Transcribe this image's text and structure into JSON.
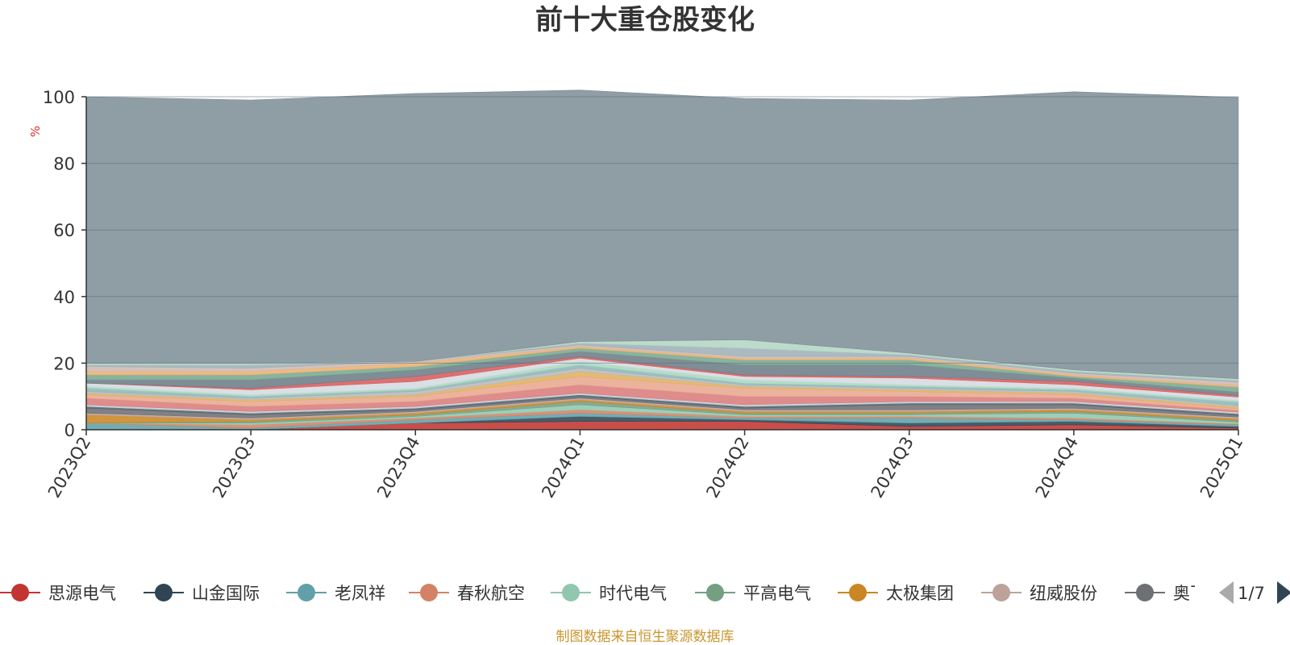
{
  "chart_data": {
    "type": "area",
    "stacked": true,
    "title": "前十大重仓股变化",
    "unit_label": "%",
    "categories": [
      "2023Q2",
      "2023Q3",
      "2023Q4",
      "2024Q1",
      "2024Q2",
      "2024Q3",
      "2024Q4",
      "2025Q1"
    ],
    "ylim": [
      0,
      100
    ],
    "yticks": [
      0,
      20,
      40,
      60,
      80,
      100
    ],
    "grid": true,
    "series": [
      {
        "name": "思源电气",
        "color": "#c23531",
        "values": [
          0.0,
          0.0,
          2.0,
          2.5,
          2.5,
          1.0,
          1.5,
          0.5
        ]
      },
      {
        "name": "山金国际",
        "color": "#2f4554",
        "values": [
          0.0,
          0.0,
          0.0,
          1.5,
          0.5,
          1.0,
          1.0,
          0.5
        ]
      },
      {
        "name": "老凤祥",
        "color": "#61a0a8",
        "values": [
          2.0,
          0.5,
          1.0,
          1.0,
          0.5,
          1.5,
          0.5,
          0.5
        ]
      },
      {
        "name": "春秋航空",
        "color": "#d48265",
        "values": [
          0.0,
          1.0,
          0.5,
          1.0,
          0.5,
          0.5,
          0.5,
          0.3
        ]
      },
      {
        "name": "时代电气",
        "color": "#91c7ae",
        "values": [
          0.0,
          0.5,
          0.5,
          1.5,
          0.5,
          0.5,
          1.5,
          0.5
        ]
      },
      {
        "name": "平高电气",
        "color": "#749f83",
        "values": [
          0.0,
          0.5,
          0.5,
          1.0,
          0.5,
          0.5,
          0.5,
          0.5
        ]
      },
      {
        "name": "太极集团",
        "color": "#ca8622",
        "values": [
          2.5,
          0.5,
          0.5,
          0.5,
          0.5,
          0.5,
          0.5,
          0.5
        ]
      },
      {
        "name": "纽威股份",
        "color": "#bda29a",
        "values": [
          0.5,
          0.5,
          0.5,
          0.5,
          0.5,
          0.5,
          0.5,
          0.5
        ]
      },
      {
        "name": "奥飞数据",
        "color": "#6e7074",
        "values": [
          1.5,
          1.0,
          0.5,
          0.5,
          0.5,
          1.5,
          1.0,
          0.5
        ]
      },
      {
        "name": "",
        "color": "#546570",
        "values": [
          0.5,
          0.5,
          0.5,
          0.5,
          0.5,
          0.5,
          0.5,
          0.5
        ]
      },
      {
        "name": "",
        "color": "#c4ccd3",
        "values": [
          0.5,
          0.5,
          0.5,
          0.5,
          0.5,
          0.5,
          0.5,
          0.5
        ]
      },
      {
        "name": "",
        "color": "#d97c7c",
        "values": [
          2.0,
          1.5,
          1.5,
          2.5,
          2.5,
          1.5,
          1.0,
          0.5
        ]
      },
      {
        "name": "",
        "color": "#e8a890",
        "values": [
          1.0,
          1.5,
          1.5,
          2.5,
          2.5,
          1.5,
          1.0,
          0.5
        ]
      },
      {
        "name": "",
        "color": "#e0b060",
        "values": [
          0.5,
          0.5,
          0.5,
          1.5,
          0.5,
          0.5,
          0.5,
          0.5
        ]
      },
      {
        "name": "",
        "color": "#b9b9b9",
        "values": [
          0.5,
          0.5,
          1.0,
          1.0,
          0.5,
          0.5,
          0.5,
          0.5
        ]
      },
      {
        "name": "",
        "color": "#8fb6b8",
        "values": [
          1.0,
          0.5,
          0.5,
          1.0,
          0.5,
          0.5,
          0.5,
          1.0
        ]
      },
      {
        "name": "",
        "color": "#a8d8c0",
        "values": [
          0.5,
          0.5,
          0.5,
          1.0,
          1.0,
          0.5,
          0.5,
          0.5
        ]
      },
      {
        "name": "",
        "color": "#d4dbe0",
        "values": [
          1.0,
          1.5,
          2.0,
          1.0,
          1.0,
          2.0,
          1.0,
          1.0
        ]
      },
      {
        "name": "",
        "color": "#d85c5c",
        "values": [
          0.0,
          0.5,
          1.5,
          0.5,
          0.5,
          0.5,
          1.0,
          0.5
        ]
      },
      {
        "name": "",
        "color": "#6d7d88",
        "values": [
          1.0,
          2.5,
          2.0,
          1.5,
          3.0,
          3.5,
          1.0,
          1.0
        ]
      },
      {
        "name": "",
        "color": "#7aa890",
        "values": [
          1.5,
          1.5,
          1.0,
          1.0,
          1.5,
          1.5,
          0.5,
          1.5
        ]
      },
      {
        "name": "",
        "color": "#eab070",
        "values": [
          1.0,
          1.0,
          1.0,
          0.5,
          0.5,
          0.5,
          0.5,
          0.5
        ]
      },
      {
        "name": "",
        "color": "#d0b8b0",
        "values": [
          1.5,
          1.0,
          0.5,
          0.5,
          0.5,
          0.5,
          0.5,
          1.0
        ]
      },
      {
        "name": "",
        "color": "#9fb0b8",
        "values": [
          0.5,
          1.0,
          0.0,
          0.5,
          2.5,
          0.5,
          0.5,
          0.5
        ]
      },
      {
        "name": "",
        "color": "#b3d6c4",
        "values": [
          0.5,
          0.5,
          0.0,
          0.5,
          2.5,
          0.5,
          0.5,
          0.5
        ]
      },
      {
        "name": "",
        "color": "#7f8f97",
        "values": [
          80.0,
          79.0,
          80.5,
          75.5,
          72.5,
          76.0,
          83.5,
          84.5
        ]
      }
    ],
    "legend": {
      "position": "bottom",
      "visible_entries": [
        "思源电气",
        "山金国际",
        "老凤祥",
        "春秋航空",
        "时代电气",
        "平高电气",
        "太极集团",
        "纽威股份",
        "奥飞数据"
      ],
      "truncated_last_entry": "奥飞数据",
      "page": "1/7"
    },
    "source_note": "制图数据来自恒生聚源数据库"
  }
}
